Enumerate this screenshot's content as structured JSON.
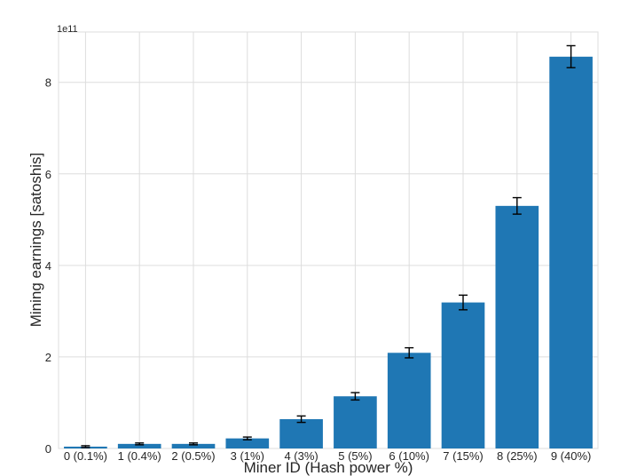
{
  "chart_data": {
    "type": "bar",
    "categories": [
      "0 (0.1%)",
      "1 (0.4%)",
      "2 (0.5%)",
      "3 (1%)",
      "4 (3%)",
      "5 (5%)",
      "6 (10%)",
      "7 (15%)",
      "8 (25%)",
      "9 (40%)"
    ],
    "values": [
      0.04,
      0.1,
      0.1,
      0.22,
      0.64,
      1.14,
      2.09,
      3.19,
      5.3,
      8.56
    ],
    "errors": [
      0.02,
      0.02,
      0.02,
      0.03,
      0.07,
      0.08,
      0.11,
      0.16,
      0.18,
      0.24
    ],
    "yticks": [
      0,
      2,
      4,
      6,
      8
    ],
    "ylim": [
      0,
      9.1
    ],
    "y_offset_label": "1e11",
    "xlabel": "Miner ID (Hash power %)",
    "ylabel": "Mining earnings [satoshis]",
    "grid": true,
    "bar_color": "#1f77b4",
    "grid_color": "#dddddd",
    "error_color": "#000000"
  }
}
